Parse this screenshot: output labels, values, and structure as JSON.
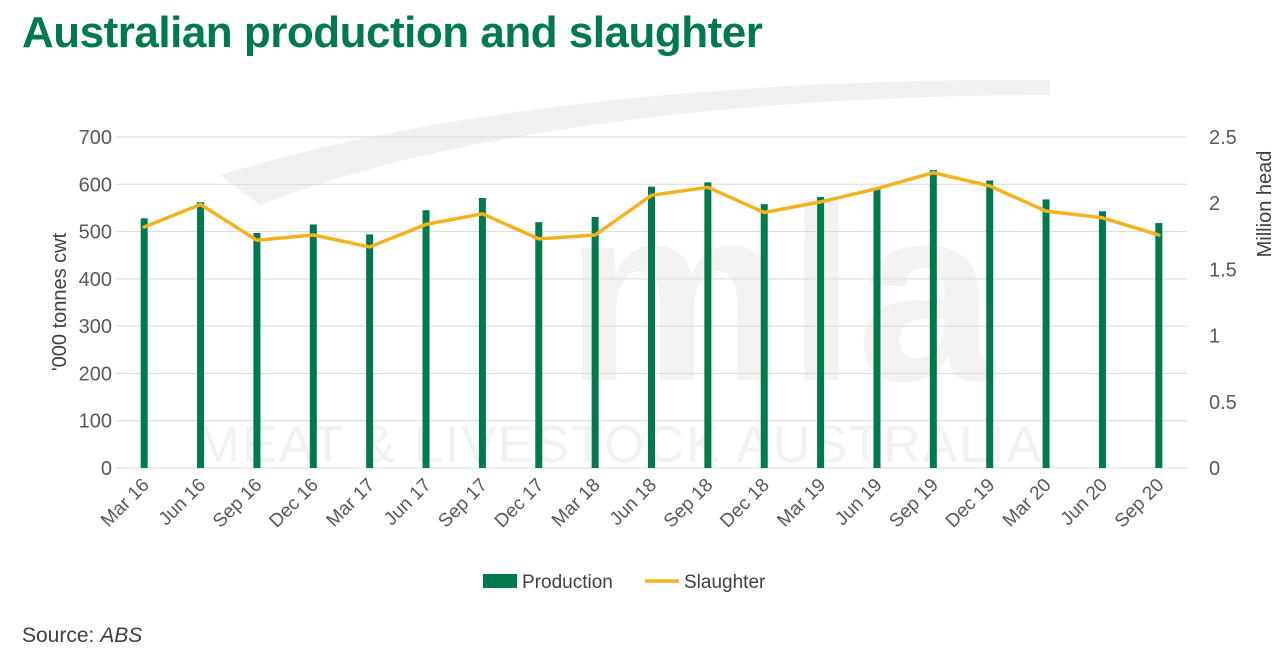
{
  "title": "Australian production and slaughter",
  "source": {
    "label": "Source:",
    "value": "ABS"
  },
  "watermark": {
    "logo": "mla",
    "text": "MEAT & LIVESTOCK AUSTRALIA"
  },
  "colors": {
    "title": "#007a4d",
    "production": "#007a4d",
    "slaughter": "#f5b21f",
    "grid": "#d9d9d9",
    "text": "#595959"
  },
  "chart_data": {
    "type": "bar",
    "title": "",
    "categories": [
      "Mar 16",
      "Jun 16",
      "Sep 16",
      "Dec 16",
      "Mar 17",
      "Jun 17",
      "Sep 17",
      "Dec 17",
      "Mar 18",
      "Jun 18",
      "Sep 18",
      "Dec 18",
      "Mar 19",
      "Jun 19",
      "Sep 19",
      "Dec 19",
      "Mar 20",
      "Jun 20",
      "Sep 20"
    ],
    "series": [
      {
        "name": "Production",
        "type": "bar",
        "axis": "left",
        "values": [
          528,
          562,
          497,
          515,
          494,
          545,
          571,
          520,
          531,
          595,
          604,
          558,
          573,
          592,
          630,
          608,
          568,
          543,
          518
        ]
      },
      {
        "name": "Slaughter",
        "type": "line",
        "axis": "right",
        "values": [
          1.82,
          1.99,
          1.72,
          1.76,
          1.67,
          1.84,
          1.92,
          1.73,
          1.76,
          2.06,
          2.12,
          1.93,
          2.01,
          2.11,
          2.23,
          2.13,
          1.94,
          1.89,
          1.76
        ]
      }
    ],
    "ylabel": "'000 tonnes cwt",
    "ylim": [
      0,
      700
    ],
    "yticks": [
      0,
      100,
      200,
      300,
      400,
      500,
      600,
      700
    ],
    "y2label": "Million head",
    "y2lim": [
      0,
      2.5
    ],
    "y2ticks": [
      "0",
      "0.5",
      "1",
      "1.5",
      "2",
      "2.5"
    ],
    "grid": true,
    "legend": "bottom"
  }
}
